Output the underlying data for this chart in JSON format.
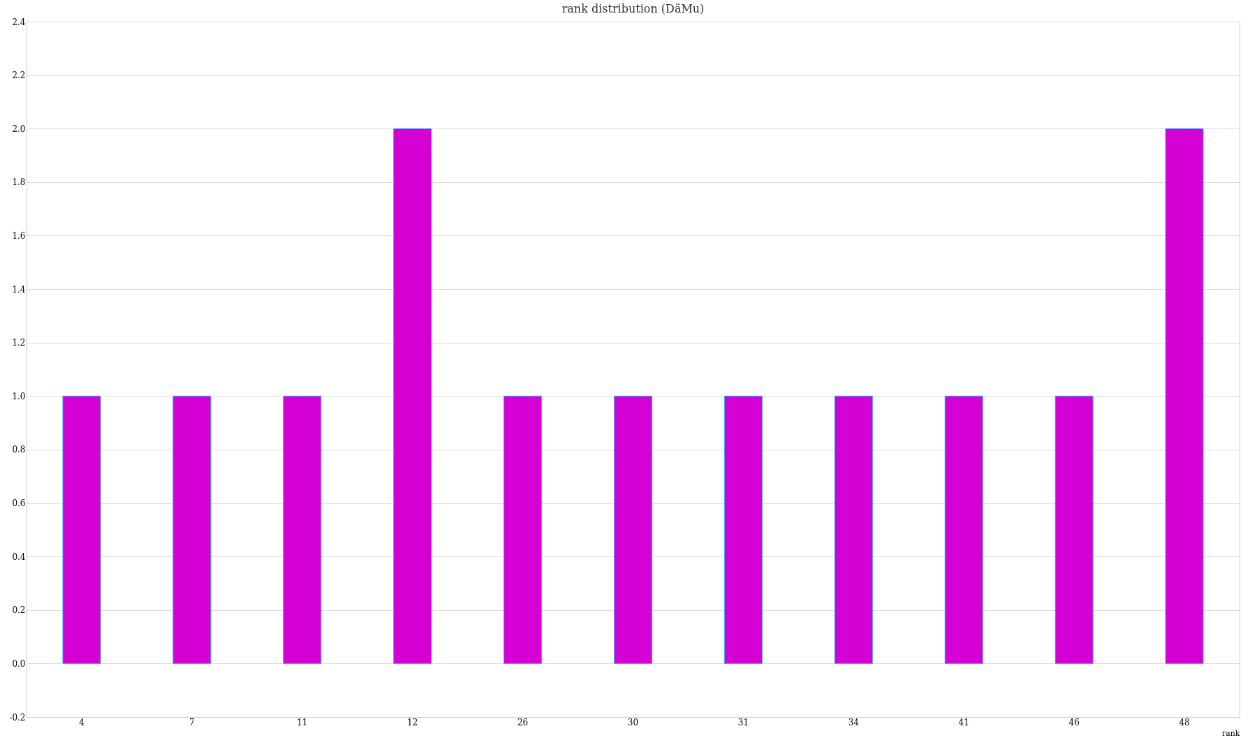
{
  "chart_data": {
    "type": "bar",
    "title": "rank distribution (DäMu)",
    "xlabel": "rank",
    "categories": [
      "4",
      "7",
      "11",
      "12",
      "26",
      "30",
      "31",
      "34",
      "41",
      "46",
      "48"
    ],
    "values": [
      1,
      1,
      1,
      2,
      1,
      1,
      1,
      1,
      1,
      1,
      2
    ],
    "color": "#d400d4",
    "ylim": [
      -0.2,
      2.4
    ],
    "yticks": [
      -0.2,
      {
        "value": 0,
        "label": "0.0"
      },
      0.2,
      0.4,
      0.6,
      0.8,
      {
        "value": 1,
        "label": "1.0"
      },
      1.2,
      1.4,
      1.6,
      1.8,
      {
        "value": 2,
        "label": "2.0"
      },
      2.2,
      2.4
    ],
    "grid": "y"
  }
}
